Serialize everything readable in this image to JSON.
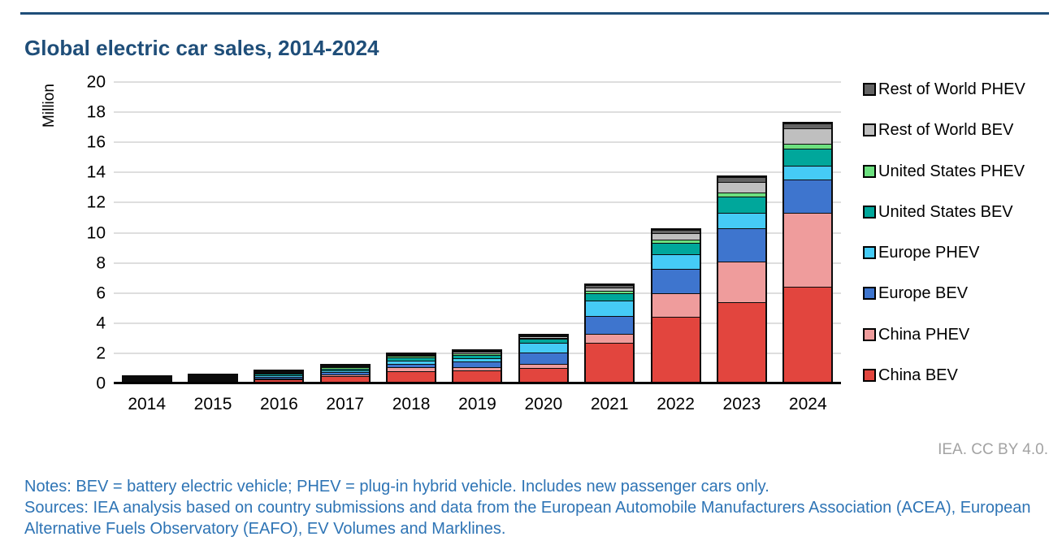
{
  "header": {
    "title": "Global electric car sales, 2014-2024"
  },
  "chart_data": {
    "type": "bar",
    "stacked": true,
    "title": "Global electric car sales, 2014-2024",
    "ylabel": "Million",
    "xlabel": "",
    "ylim": [
      0,
      20
    ],
    "ytick_step": 2,
    "yticks": [
      0,
      2,
      4,
      6,
      8,
      10,
      12,
      14,
      16,
      18,
      20
    ],
    "grid": "horizontal-only",
    "legend_position": "right",
    "legend_order_note": "legend listed top-to-bottom is reverse of stacking order (China BEV is bottom segment)",
    "categories": [
      "2014",
      "2015",
      "2016",
      "2017",
      "2018",
      "2019",
      "2020",
      "2021",
      "2022",
      "2023",
      "2024"
    ],
    "series": [
      {
        "name": "China BEV",
        "color": "#E2453E",
        "values": [
          0.08,
          0.15,
          0.26,
          0.47,
          0.82,
          0.85,
          1.0,
          2.7,
          4.4,
          5.4,
          6.4
        ]
      },
      {
        "name": "China PHEV",
        "color": "#EF9C9C",
        "values": [
          0.02,
          0.06,
          0.08,
          0.11,
          0.27,
          0.23,
          0.25,
          0.6,
          1.55,
          2.7,
          4.9
        ]
      },
      {
        "name": "Europe BEV",
        "color": "#3E75CE",
        "values": [
          0.06,
          0.08,
          0.09,
          0.14,
          0.2,
          0.36,
          0.75,
          1.2,
          1.6,
          2.2,
          2.2
        ]
      },
      {
        "name": "Europe PHEV",
        "color": "#45CBF6",
        "values": [
          0.05,
          0.08,
          0.09,
          0.13,
          0.19,
          0.23,
          0.62,
          1.0,
          0.95,
          1.0,
          0.9
        ]
      },
      {
        "name": "United States BEV",
        "color": "#00A79B",
        "values": [
          0.06,
          0.07,
          0.09,
          0.1,
          0.24,
          0.24,
          0.25,
          0.47,
          0.75,
          1.1,
          1.15
        ]
      },
      {
        "name": "United States PHEV",
        "color": "#6CE07F",
        "values": [
          0.05,
          0.04,
          0.07,
          0.09,
          0.12,
          0.09,
          0.06,
          0.17,
          0.2,
          0.25,
          0.3
        ]
      },
      {
        "name": "Rest of World BEV",
        "color": "#BFBFBF",
        "values": [
          0.01,
          0.02,
          0.03,
          0.07,
          0.08,
          0.09,
          0.1,
          0.2,
          0.45,
          0.7,
          1.05
        ]
      },
      {
        "name": "Rest of World PHEV",
        "color": "#646464",
        "values": [
          0.01,
          0.01,
          0.02,
          0.05,
          0.05,
          0.06,
          0.05,
          0.15,
          0.2,
          0.3,
          0.3
        ]
      }
    ]
  },
  "attribution": "IEA. CC BY 4.0.",
  "notes": {
    "line1": "Notes: BEV = battery electric vehicle; PHEV = plug-in hybrid vehicle. Includes new passenger cars only.",
    "line2": "Sources: IEA analysis based on country submissions and data from the European Automobile Manufacturers Association (ACEA), European Alternative Fuels Observatory (EAFO), EV Volumes and Marklines."
  },
  "colors": {
    "title": "#1F4E79",
    "top_rule": "#1F4E79",
    "notes_text": "#2E74B5",
    "attribution_text": "#A3A3A3",
    "gridline": "#DEDEDE",
    "axis": "#000000",
    "segment_border": "#0B0B0B"
  }
}
